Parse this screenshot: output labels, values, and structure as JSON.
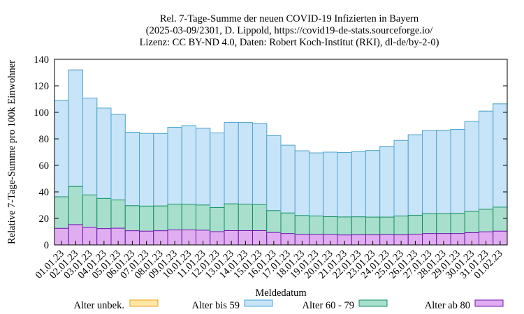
{
  "chart_data": {
    "type": "bar",
    "stacked": true,
    "title_lines": [
      "Rel. 7-Tage-Summe der neuen COVID-19 Infizierten in Bayern",
      "(2025-03-09/2301, D. Lippold, https://covid19-de-stats.sourceforge.io/",
      "Lizenz: CC BY-ND 4.0, Daten: Robert Koch-Institut (RKI), dl-de/by-2-0)"
    ],
    "xlabel": "Meldedatum",
    "ylabel": "Relative 7-Tage-Summe pro 100k Einwohner",
    "ylim": [
      0,
      140
    ],
    "yticks": [
      0,
      20,
      40,
      60,
      80,
      100,
      120,
      140
    ],
    "grid": false,
    "legend_position": "bottom",
    "categories": [
      "01.01.23",
      "02.01.23",
      "03.01.23",
      "04.01.23",
      "05.01.23",
      "06.01.23",
      "07.01.23",
      "08.01.23",
      "09.01.23",
      "10.01.23",
      "11.01.23",
      "12.01.23",
      "13.01.23",
      "14.01.23",
      "15.01.23",
      "16.01.23",
      "17.01.23",
      "18.01.23",
      "19.01.23",
      "20.01.23",
      "21.01.23",
      "22.01.23",
      "23.01.23",
      "24.01.23",
      "25.01.23",
      "26.01.23",
      "27.01.23",
      "28.01.23",
      "29.01.23",
      "30.01.23",
      "31.01.23",
      "01.02.23"
    ],
    "series": [
      {
        "name": "Alter unbek.",
        "fill": "#fde6a6",
        "stroke": "#e8a21a",
        "values": [
          0,
          0,
          0,
          0,
          0,
          0,
          0,
          0,
          0,
          0,
          0,
          0,
          0,
          0,
          0,
          0,
          0,
          0,
          0,
          0,
          0,
          0,
          0,
          0,
          0,
          0,
          0,
          0,
          0,
          0,
          0,
          0
        ]
      },
      {
        "name": "Alter bis 59",
        "fill": "#c8e4f8",
        "stroke": "#4aa8dc",
        "values": [
          72.7,
          87.9,
          73.1,
          68.1,
          64.6,
          55.4,
          54.8,
          54.6,
          57.9,
          59.3,
          57.9,
          56.3,
          61.4,
          61.5,
          61.1,
          56.5,
          51.1,
          48.8,
          47.6,
          48.7,
          48.6,
          49.1,
          50.2,
          53.3,
          57.0,
          60.7,
          62.6,
          62.9,
          63.2,
          67.8,
          74.0,
          77.9
        ]
      },
      {
        "name": "Alter 60 - 79",
        "fill": "#a8decc",
        "stroke": "#109060",
        "values": [
          23.8,
          28.8,
          24.4,
          22.8,
          21.3,
          18.9,
          18.9,
          18.7,
          19.5,
          19.4,
          19.0,
          18.2,
          20.2,
          20.0,
          19.6,
          16.5,
          15.5,
          14.4,
          14.0,
          13.5,
          13.6,
          13.6,
          13.4,
          13.3,
          14.2,
          14.5,
          15.0,
          15.0,
          15.3,
          16.1,
          17.0,
          18.1
        ]
      },
      {
        "name": "Alter ab 80",
        "fill": "#e0aef0",
        "stroke": "#7010b0",
        "values": [
          12.5,
          15.3,
          13.3,
          12.3,
          12.6,
          10.7,
          10.4,
          10.7,
          11.3,
          11.3,
          11.1,
          10.0,
          10.8,
          10.8,
          10.8,
          9.4,
          8.6,
          7.8,
          7.8,
          7.8,
          7.5,
          7.6,
          7.6,
          7.7,
          7.6,
          7.9,
          8.6,
          8.6,
          8.6,
          9.2,
          9.9,
          10.4
        ]
      }
    ]
  }
}
